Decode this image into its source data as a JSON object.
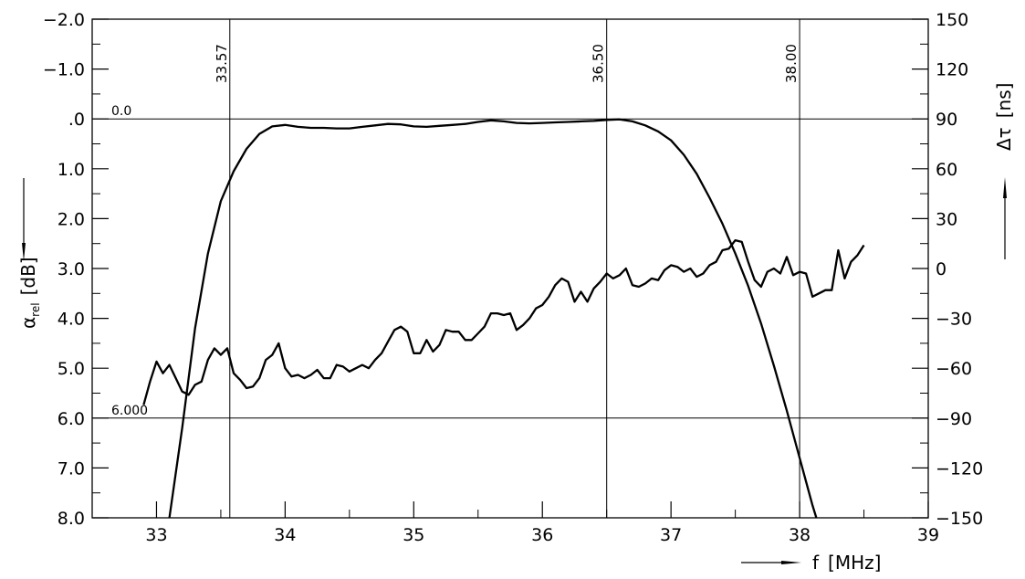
{
  "chart_data": {
    "type": "line",
    "title": "",
    "xlabel": "f",
    "xunit": "[MHz]",
    "xlim": [
      32.5,
      39
    ],
    "x_ticks": [
      "33",
      "34",
      "35",
      "36",
      "37",
      "38",
      "39"
    ],
    "y_left": {
      "label": "α",
      "label_subscript": "rel",
      "unit": "[dB]",
      "inverted": true,
      "range": [
        -2.0,
        8.0
      ],
      "tick_values": [
        -2,
        -1,
        0,
        1,
        2,
        3,
        4,
        5,
        6,
        7,
        8
      ],
      "tick_labels": [
        "−2.0",
        "−1.0",
        ".0",
        "1.0",
        "2.0",
        "3.0",
        "4.0",
        "5.0",
        "6.0",
        "7.0",
        "8.0"
      ]
    },
    "y_right": {
      "label": "Δτ",
      "unit": "[ns]",
      "range": [
        -150,
        150
      ],
      "tick_values": [
        150,
        120,
        90,
        60,
        30,
        0,
        -30,
        -60,
        -90,
        -120,
        -150
      ],
      "tick_labels": [
        "150",
        "120",
        "90",
        "60",
        "30",
        "0",
        "−30",
        "−60",
        "−90",
        "−120",
        "−150"
      ]
    },
    "markers": [
      {
        "label": "33.57",
        "x": 33.57
      },
      {
        "label": "36.50",
        "x": 36.5
      },
      {
        "label": "38.00",
        "x": 38.0
      }
    ],
    "reference_lines": [
      {
        "label": "0.0",
        "y": 0.0
      },
      {
        "label": "6.000",
        "y": 6.0
      }
    ],
    "grid": false,
    "series": [
      {
        "axis": "left",
        "x": [
          33.1,
          33.2,
          33.3,
          33.4,
          33.5,
          33.6,
          33.7,
          33.8,
          33.9,
          34.0,
          34.1,
          34.2,
          34.3,
          34.4,
          34.5,
          34.6,
          34.7,
          34.8,
          34.9,
          35.0,
          35.1,
          35.2,
          35.3,
          35.4,
          35.5,
          35.6,
          35.7,
          35.8,
          35.9,
          36.0,
          36.1,
          36.2,
          36.3,
          36.4,
          36.5,
          36.6,
          36.7,
          36.8,
          36.9,
          37.0,
          37.1,
          37.2,
          37.3,
          37.4,
          37.5,
          37.6,
          37.7,
          37.8,
          37.9,
          38.0,
          38.1,
          38.13
        ],
        "values": [
          8.0,
          6.2,
          4.2,
          2.7,
          1.65,
          1.05,
          0.6,
          0.3,
          0.15,
          0.12,
          0.16,
          0.18,
          0.18,
          0.19,
          0.19,
          0.16,
          0.13,
          0.1,
          0.11,
          0.15,
          0.16,
          0.14,
          0.12,
          0.1,
          0.06,
          0.03,
          0.05,
          0.08,
          0.09,
          0.08,
          0.07,
          0.06,
          0.05,
          0.04,
          0.02,
          0.01,
          0.05,
          0.13,
          0.25,
          0.43,
          0.72,
          1.1,
          1.58,
          2.1,
          2.7,
          3.35,
          4.1,
          4.95,
          5.85,
          6.8,
          7.75,
          8.0
        ]
      },
      {
        "axis": "right",
        "x": [
          32.9,
          32.95,
          33.0,
          33.05,
          33.1,
          33.15,
          33.2,
          33.25,
          33.3,
          33.35,
          33.4,
          33.45,
          33.5,
          33.55,
          33.6,
          33.65,
          33.7,
          33.75,
          33.8,
          33.85,
          33.9,
          33.95,
          34.0,
          34.05,
          34.1,
          34.15,
          34.2,
          34.25,
          34.3,
          34.35,
          34.4,
          34.45,
          34.5,
          34.55,
          34.6,
          34.65,
          34.7,
          34.75,
          34.8,
          34.85,
          34.9,
          34.95,
          35.0,
          35.05,
          35.1,
          35.15,
          35.2,
          35.25,
          35.3,
          35.35,
          35.4,
          35.45,
          35.5,
          35.55,
          35.6,
          35.65,
          35.7,
          35.75,
          35.8,
          35.85,
          35.9,
          35.95,
          36.0,
          36.05,
          36.1,
          36.15,
          36.2,
          36.25,
          36.3,
          36.35,
          36.4,
          36.45,
          36.5,
          36.55,
          36.6,
          36.65,
          36.7,
          36.75,
          36.8,
          36.85,
          36.9,
          36.95,
          37.0,
          37.05,
          37.1,
          37.15,
          37.2,
          37.25,
          37.3,
          37.35,
          37.4,
          37.45,
          37.5,
          37.55,
          37.6,
          37.65,
          37.7,
          37.75,
          37.8,
          37.85,
          37.9,
          37.95,
          38.0,
          38.05,
          38.1,
          38.15,
          38.2,
          38.25,
          38.3,
          38.35,
          38.4,
          38.45,
          38.5
        ],
        "values": [
          -82,
          -68,
          -56,
          -63,
          -58,
          -66,
          -74,
          -76,
          -70,
          -68,
          -55,
          -48,
          -52,
          -48,
          -63,
          -67,
          -72,
          -71,
          -66,
          -55,
          -52,
          -45,
          -60,
          -65,
          -64,
          -66,
          -64,
          -61,
          -66,
          -66,
          -58,
          -59,
          -62,
          -60,
          -58,
          -60,
          -55,
          -51,
          -44,
          -37,
          -35,
          -38,
          -51,
          -51,
          -43,
          -50,
          -46,
          -37,
          -38,
          -38,
          -43,
          -43,
          -39,
          -35,
          -27,
          -27,
          -28,
          -27,
          -37,
          -34,
          -30,
          -24,
          -22,
          -17,
          -10,
          -6,
          -8,
          -20,
          -14,
          -20,
          -12,
          -8,
          -3,
          -6,
          -4,
          0,
          -10,
          -11,
          -9,
          -6,
          -7,
          -1,
          2,
          1,
          -2,
          0,
          -5,
          -3,
          2,
          4,
          11,
          12,
          17,
          16,
          4,
          -7,
          -11,
          -2,
          0,
          -3,
          7,
          -4,
          -2,
          -3,
          -17,
          -15,
          -13,
          -13,
          11,
          -6,
          4,
          8,
          14
        ]
      }
    ]
  }
}
